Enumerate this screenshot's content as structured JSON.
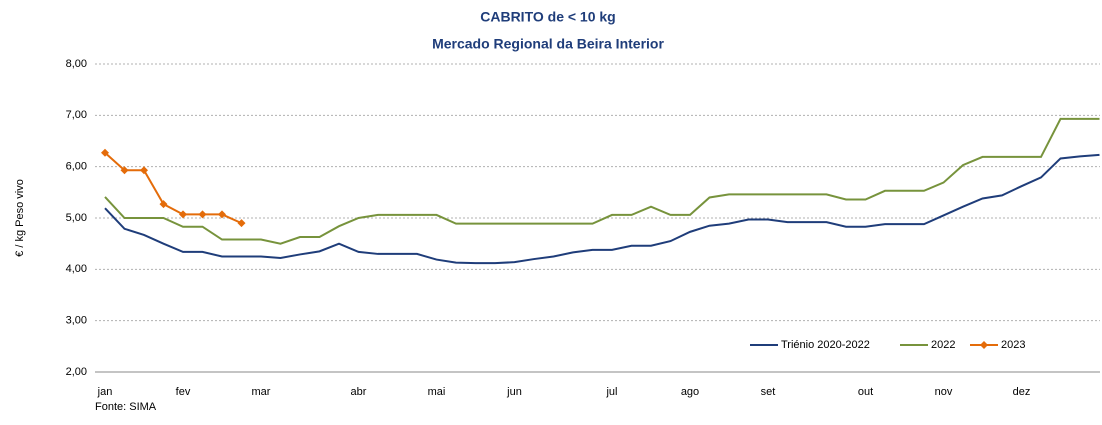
{
  "chart_data": {
    "type": "line",
    "title": "CABRITO de < 10 kg",
    "subtitle": "Mercado Regional da Beira Interior",
    "y_label": "€ / kg Peso vivo",
    "source": "Fonte: SIMA",
    "categories": [
      "jan",
      null,
      null,
      null,
      "fev",
      null,
      null,
      null,
      "mar",
      null,
      null,
      null,
      null,
      "abr",
      null,
      null,
      null,
      "mai",
      null,
      null,
      null,
      "jun",
      null,
      null,
      null,
      null,
      "jul",
      null,
      null,
      null,
      "ago",
      null,
      null,
      null,
      "set",
      null,
      null,
      null,
      null,
      "out",
      null,
      null,
      null,
      "nov",
      null,
      null,
      null,
      "dez",
      null,
      null,
      null,
      null
    ],
    "ylim": [
      2,
      8
    ],
    "yticks": [
      {
        "value": 2,
        "label": "2,00"
      },
      {
        "value": 3,
        "label": "3,00"
      },
      {
        "value": 4,
        "label": "4,00"
      },
      {
        "value": 5,
        "label": "5,00"
      },
      {
        "value": 6,
        "label": "6,00"
      },
      {
        "value": 7,
        "label": "7,00"
      },
      {
        "value": 8,
        "label": "8,00"
      }
    ],
    "grid": true,
    "legend": "bottom-right",
    "series": [
      {
        "name": "Triénio 2020-2022",
        "color": "#1f3d7a",
        "marker": false,
        "values": [
          5.19,
          4.79,
          4.67,
          4.5,
          4.34,
          4.34,
          4.25,
          4.25,
          4.25,
          4.22,
          4.29,
          4.35,
          4.5,
          4.34,
          4.3,
          4.3,
          4.3,
          4.19,
          4.13,
          4.12,
          4.12,
          4.14,
          4.2,
          4.25,
          4.33,
          4.38,
          4.38,
          4.46,
          4.46,
          4.55,
          4.73,
          4.85,
          4.89,
          4.97,
          4.97,
          4.92,
          4.92,
          4.92,
          4.83,
          4.83,
          4.88,
          4.88,
          4.88,
          5.05,
          5.22,
          5.38,
          5.44,
          5.62,
          5.79,
          6.16,
          6.2,
          6.23
        ]
      },
      {
        "name": "2022",
        "color": "#77933c",
        "marker": false,
        "values": [
          5.41,
          5.0,
          5.0,
          5.0,
          4.83,
          4.83,
          4.58,
          4.58,
          4.58,
          4.5,
          4.63,
          4.63,
          4.84,
          5.0,
          5.06,
          5.06,
          5.06,
          5.06,
          4.89,
          4.89,
          4.89,
          4.89,
          4.89,
          4.89,
          4.89,
          4.89,
          5.06,
          5.06,
          5.22,
          5.06,
          5.06,
          5.4,
          5.46,
          5.46,
          5.46,
          5.46,
          5.46,
          5.46,
          5.36,
          5.36,
          5.53,
          5.53,
          5.53,
          5.69,
          6.03,
          6.19,
          6.19,
          6.19,
          6.19,
          6.93,
          6.93,
          6.93
        ]
      },
      {
        "name": "2023",
        "color": "#e46c0a",
        "marker": true,
        "values": [
          6.27,
          5.93,
          5.93,
          5.27,
          5.07,
          5.07,
          5.07,
          4.9,
          null,
          null,
          null,
          null,
          null,
          null,
          null,
          null,
          null,
          null,
          null,
          null,
          null,
          null,
          null,
          null,
          null,
          null,
          null,
          null,
          null,
          null,
          null,
          null,
          null,
          null,
          null,
          null,
          null,
          null,
          null,
          null,
          null,
          null,
          null,
          null,
          null,
          null,
          null,
          null,
          null,
          null,
          null,
          null
        ]
      }
    ]
  }
}
